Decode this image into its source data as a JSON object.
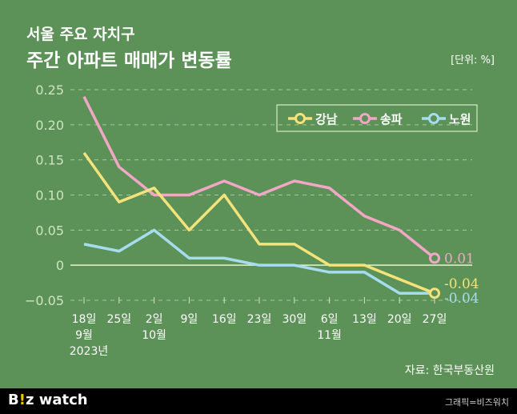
{
  "header": {
    "title_line1": "서울 주요 자치구",
    "title_line2": "주간 아파트 매매가 변동률",
    "unit": "[단위: %]"
  },
  "source": "자료: 한국부동산원",
  "footer": {
    "logo": "Biz watch",
    "credit": "그래픽=비즈워치"
  },
  "colors": {
    "background": "#5c9157",
    "강남": "#f4e37a",
    "송파": "#f2a7c6",
    "노원": "#a7dcef"
  },
  "chart_data": {
    "type": "line",
    "x": [
      "18일",
      "25일",
      "2일",
      "9일",
      "16일",
      "23일",
      "30일",
      "6일",
      "13일",
      "20일",
      "27일"
    ],
    "x_month_labels": {
      "0": "9월",
      "2": "10월",
      "7": "11월"
    },
    "x_year_label": "2023년",
    "yticks": [
      0.25,
      0.2,
      0.15,
      0.1,
      0.05,
      0,
      -0.05
    ],
    "ytick_labels": [
      "0.25",
      "0.20",
      "0.15",
      "0.10",
      "0.05",
      "0",
      "−0.05"
    ],
    "ylim": [
      -0.05,
      0.25
    ],
    "grid": true,
    "legend": "top-right",
    "series": [
      {
        "name": "강남",
        "values": [
          0.16,
          0.09,
          0.11,
          0.05,
          0.1,
          0.03,
          0.03,
          0.0,
          0.0,
          -0.02,
          -0.04
        ],
        "end_label": "-0.04"
      },
      {
        "name": "송파",
        "values": [
          0.24,
          0.14,
          0.1,
          0.1,
          0.12,
          0.1,
          0.12,
          0.11,
          0.07,
          0.05,
          0.01
        ],
        "end_label": "0.01"
      },
      {
        "name": "노원",
        "values": [
          0.03,
          0.02,
          0.05,
          0.01,
          0.01,
          0.0,
          0.0,
          -0.01,
          -0.01,
          -0.04,
          -0.04
        ],
        "end_label": "-0.04"
      }
    ]
  }
}
